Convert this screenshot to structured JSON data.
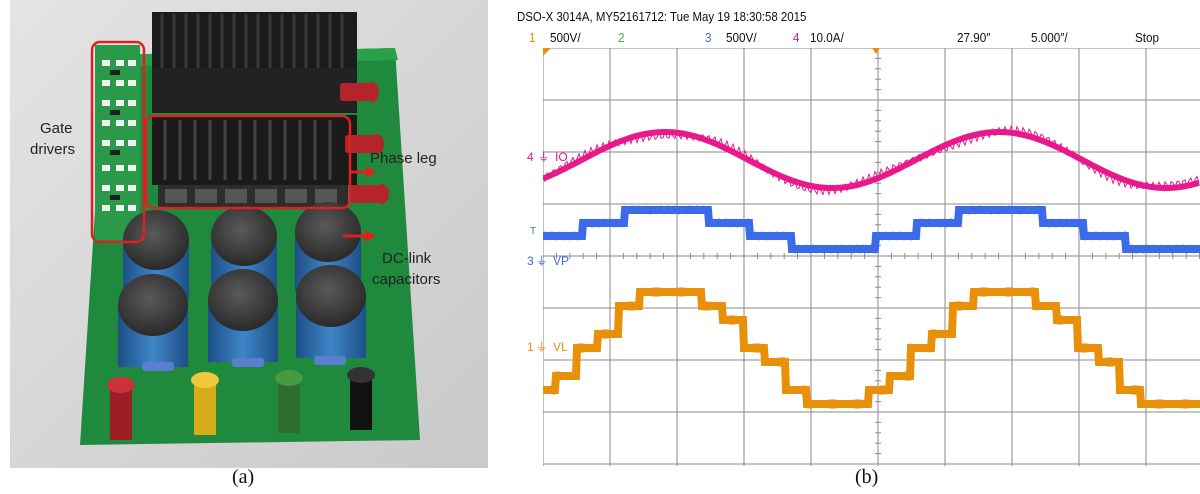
{
  "panel_a": {
    "labels": {
      "gate_drivers_1": "Gate",
      "gate_drivers_2": "drivers",
      "phase_leg": "Phase leg",
      "dc_link_1": "DC-link",
      "dc_link_2": "capacitors"
    },
    "caption": "(a)"
  },
  "panel_b": {
    "header": {
      "title": "DSO-X 3014A, MY52161712: Tue May 19 18:30:58 2015",
      "ch1_num": "1",
      "ch1_scale": "500V/",
      "ch2_num": "2",
      "ch3_num": "3",
      "ch3_scale": "500V/",
      "ch4_num": "4",
      "ch4_scale": "10.0A/",
      "time_offset": "27.90″",
      "time_scale": "5.000″/",
      "status": "Stop"
    },
    "channels": {
      "io_marker": "4",
      "io_label": "IO",
      "vp_marker": "3",
      "vp_label": "VP",
      "vl_marker": "1",
      "vl_label": "VL"
    },
    "caption": "(b)"
  },
  "colors": {
    "ch1": "#e8900a",
    "ch2": "#38b238",
    "ch3": "#3b6be8",
    "ch4": "#e8198a",
    "grid": "#8a8a8a",
    "pcb": "#1f8a3e"
  }
}
